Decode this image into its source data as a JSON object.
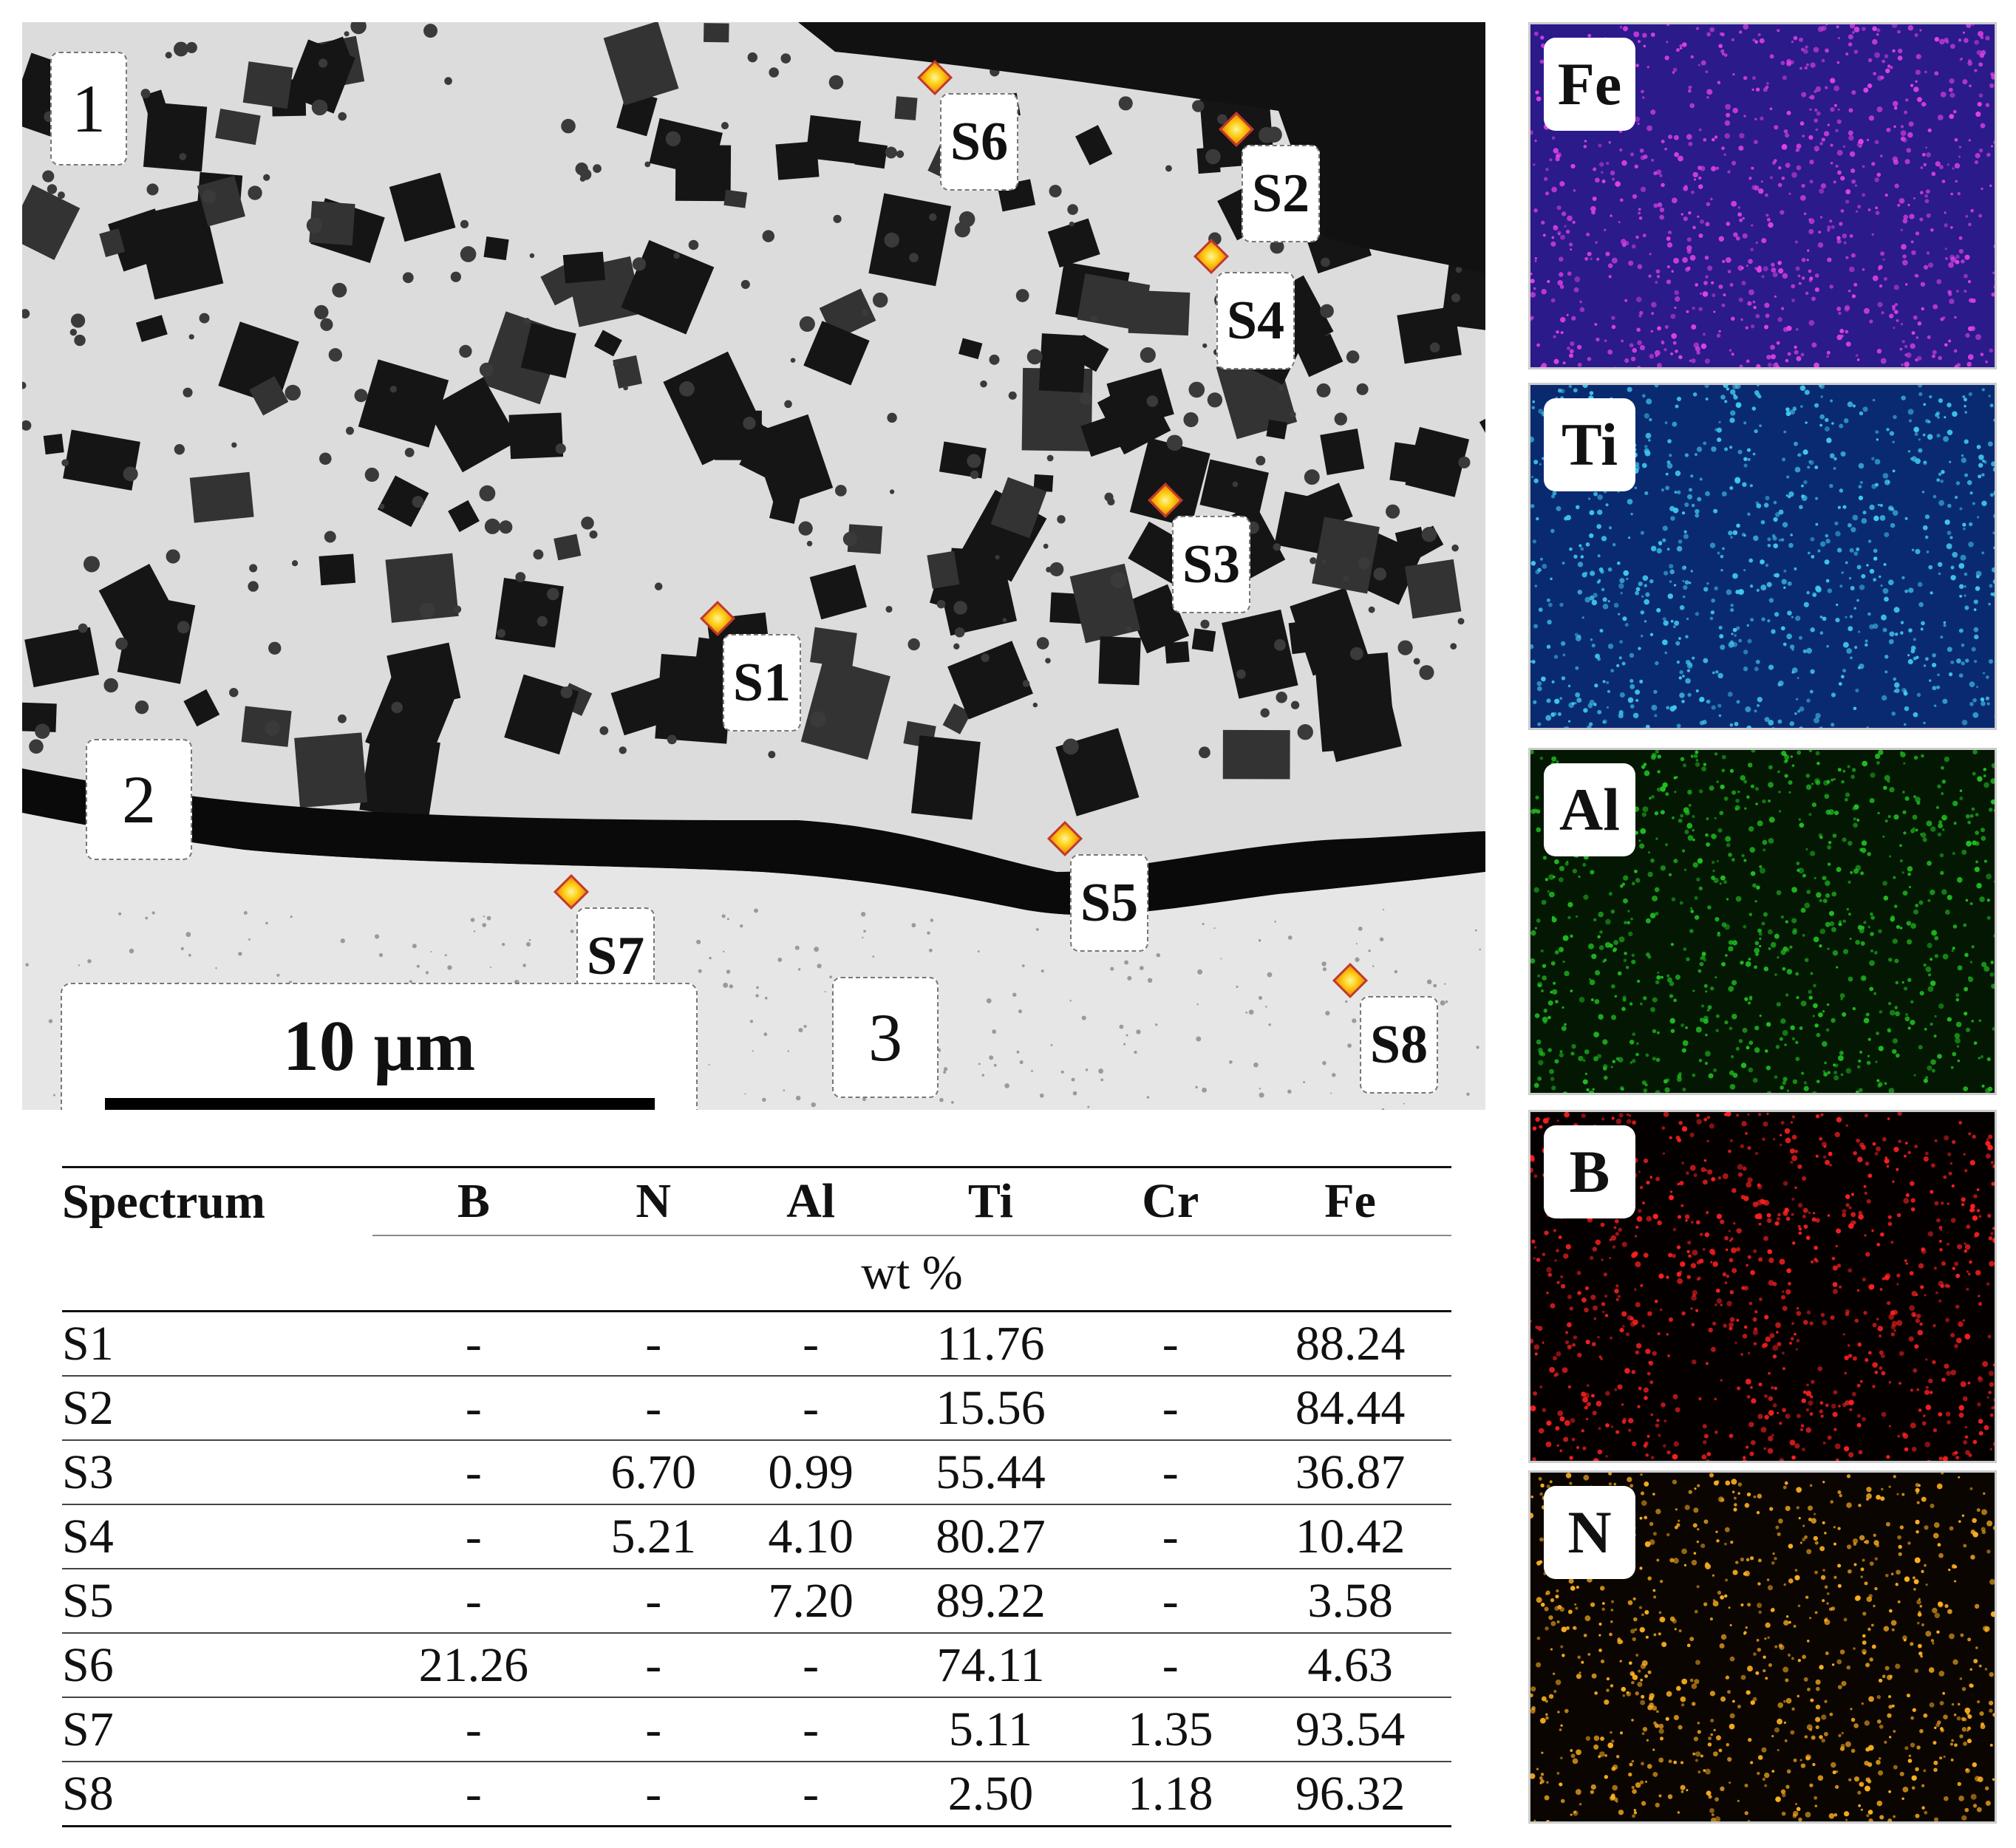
{
  "micrograph": {
    "regions": [
      {
        "id": "region-1",
        "label": "1"
      },
      {
        "id": "region-2",
        "label": "2"
      },
      {
        "id": "region-3",
        "label": "3"
      }
    ],
    "spectra": [
      "S1",
      "S2",
      "S3",
      "S4",
      "S5",
      "S6",
      "S7",
      "S8"
    ],
    "scale_bar_label": "10 µm"
  },
  "element_maps": [
    {
      "element": "Fe",
      "color": "#e040e8"
    },
    {
      "element": "Ti",
      "color": "#40c8f0"
    },
    {
      "element": "Al",
      "color": "#20c020"
    },
    {
      "element": "B",
      "color": "#ff2020"
    },
    {
      "element": "N",
      "color": "#ffb020"
    }
  ],
  "table": {
    "headers": [
      "Spectrum",
      "B",
      "N",
      "Al",
      "Ti",
      "Cr",
      "Fe"
    ],
    "unit": "wt %",
    "rows": [
      [
        "S1",
        "-",
        "-",
        "-",
        "11.76",
        "-",
        "88.24"
      ],
      [
        "S2",
        "-",
        "-",
        "-",
        "15.56",
        "-",
        "84.44"
      ],
      [
        "S3",
        "-",
        "6.70",
        "0.99",
        "55.44",
        "-",
        "36.87"
      ],
      [
        "S4",
        "-",
        "5.21",
        "4.10",
        "80.27",
        "-",
        "10.42"
      ],
      [
        "S5",
        "-",
        "-",
        "7.20",
        "89.22",
        "-",
        "3.58"
      ],
      [
        "S6",
        "21.26",
        "-",
        "-",
        "74.11",
        "-",
        "4.63"
      ],
      [
        "S7",
        "-",
        "-",
        "-",
        "5.11",
        "1.35",
        "93.54"
      ],
      [
        "S8",
        "-",
        "-",
        "-",
        "2.50",
        "1.18",
        "96.32"
      ]
    ]
  }
}
